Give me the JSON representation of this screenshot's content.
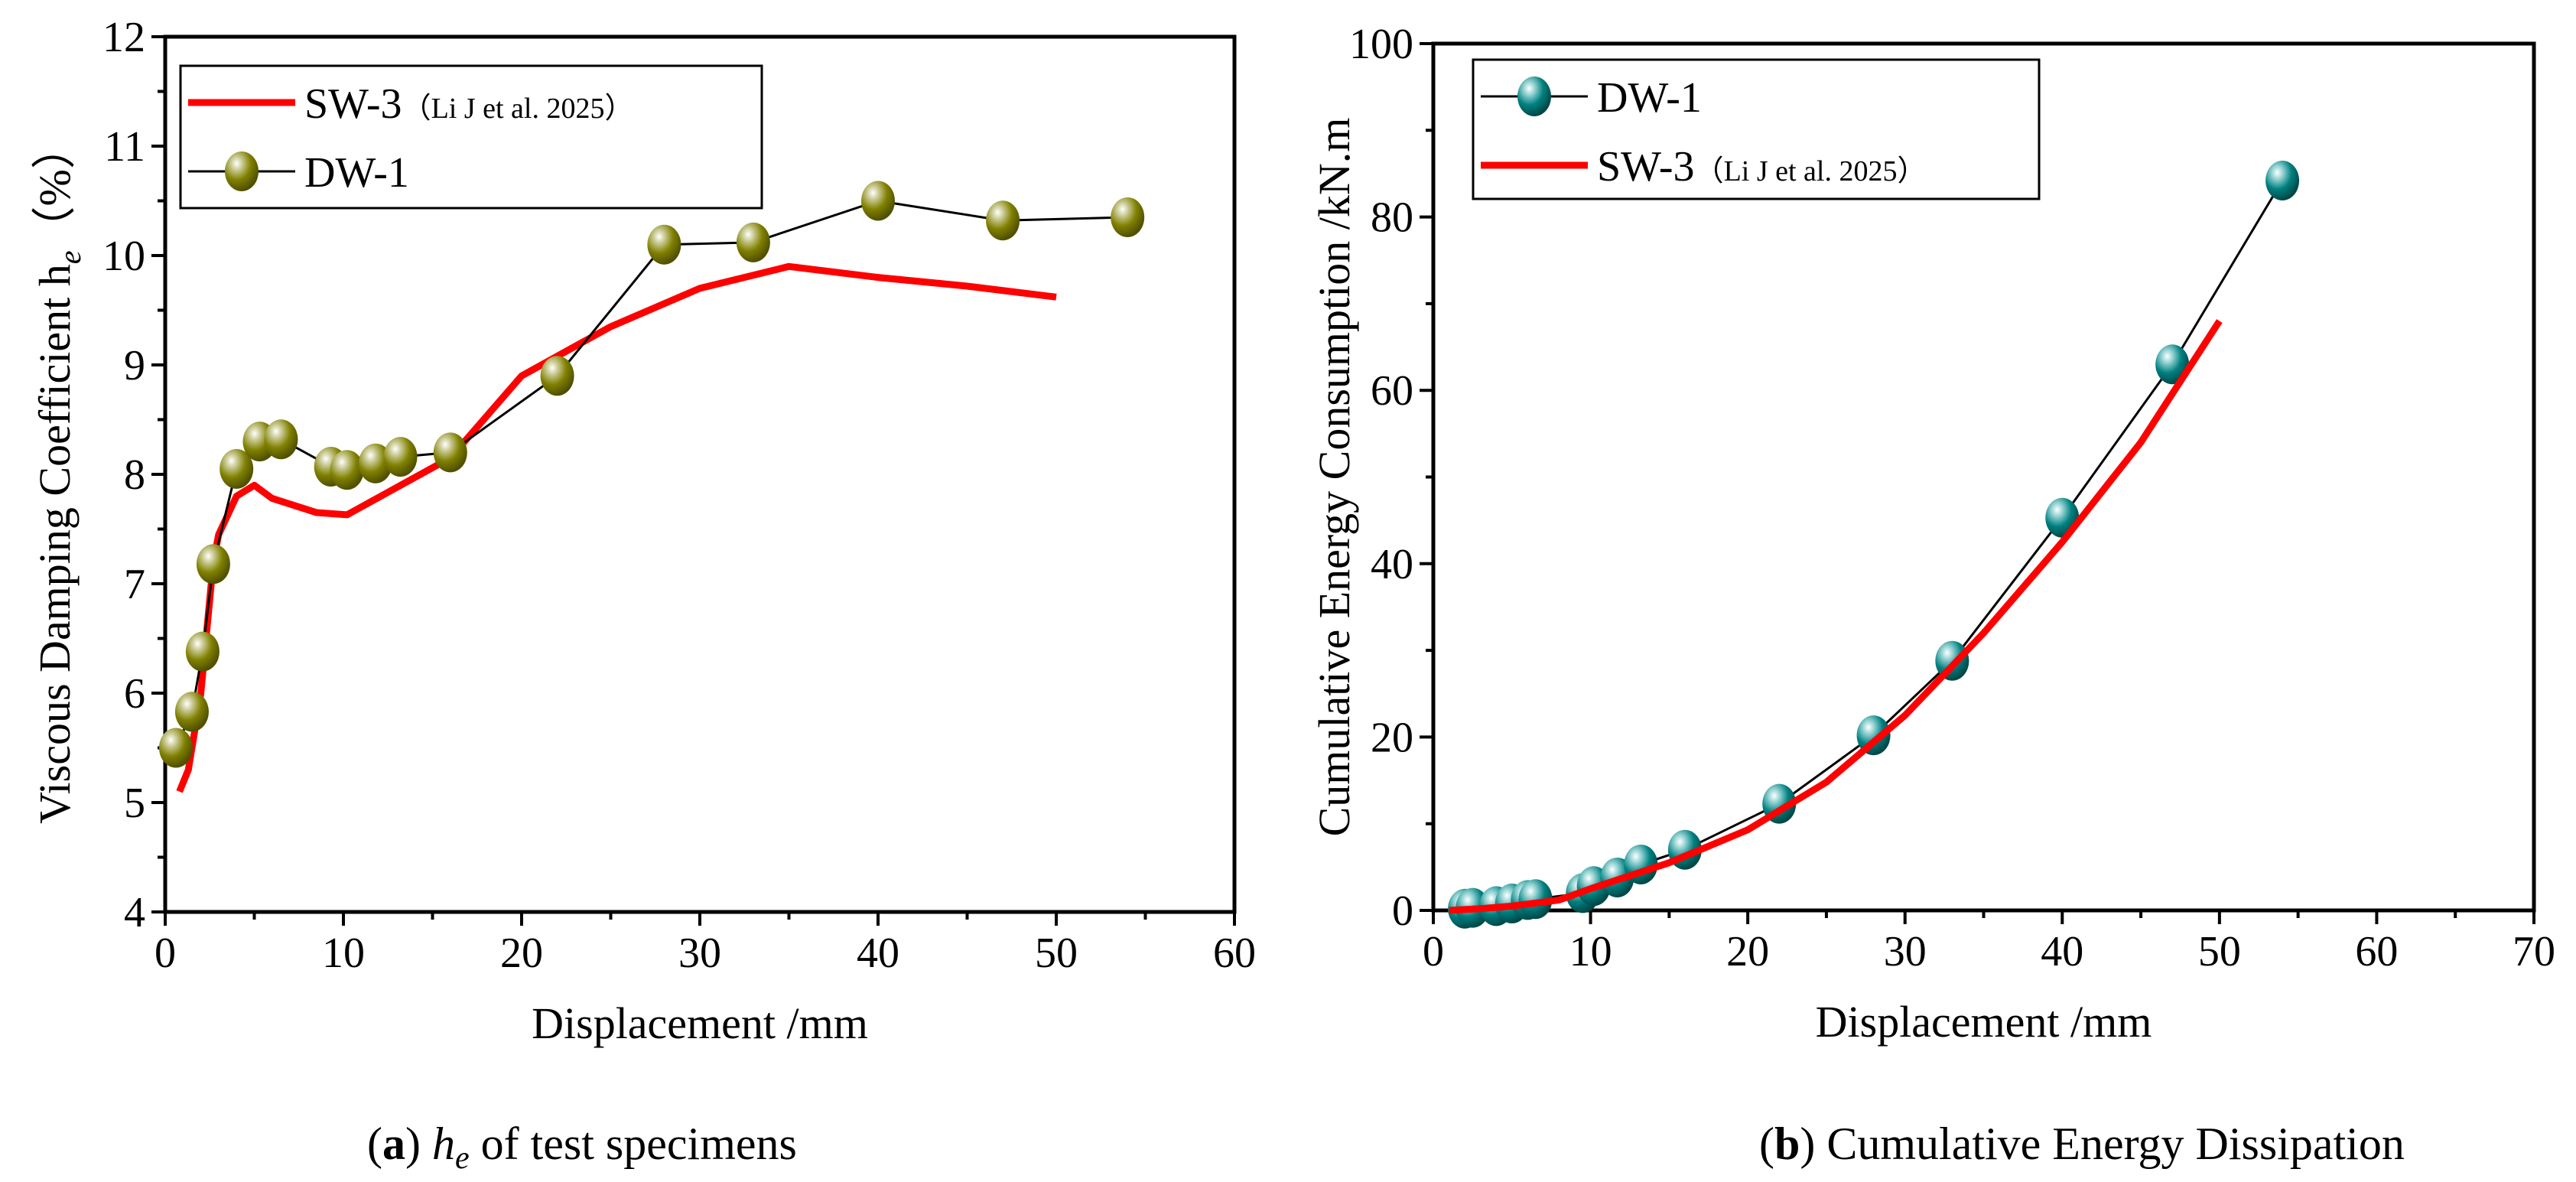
{
  "chart_data": [
    {
      "type": "line",
      "title": "",
      "caption_letter": "a",
      "caption_sym": "h",
      "caption_sub": "e",
      "caption_rest": " of test specimens",
      "xlabel": "Displacement /mm",
      "ylabel": "Viscous Damping Coefficient  h",
      "ylabel_sub": "e",
      "ylabel_unit": "（%）",
      "xlim": [
        0,
        60
      ],
      "ylim": [
        4,
        12
      ],
      "xticks": [
        0,
        10,
        20,
        30,
        40,
        50,
        60
      ],
      "yticks": [
        4,
        5,
        6,
        7,
        8,
        9,
        10,
        11,
        12
      ],
      "legend": "top-left",
      "series": [
        {
          "name": "SW-3",
          "note": "（Li J et al. 2025）",
          "color": "#ff0000",
          "marker": false,
          "x": [
            0.8,
            1.3,
            2,
            2.7,
            3,
            4,
            5,
            6,
            8.5,
            10.2,
            16,
            20,
            25,
            30,
            35,
            40,
            45,
            50
          ],
          "y": [
            5.1,
            5.3,
            6,
            7.2,
            7.45,
            7.8,
            7.9,
            7.78,
            7.65,
            7.63,
            8.15,
            8.9,
            9.35,
            9.7,
            9.9,
            9.8,
            9.72,
            9.62
          ]
        },
        {
          "name": "DW-1",
          "note": "",
          "color": "#808000",
          "marker": true,
          "x": [
            0.6,
            1.5,
            2.1,
            2.7,
            4,
            5.3,
            6.5,
            9.3,
            10.2,
            11.8,
            13.2,
            16,
            22,
            28,
            33,
            40,
            47,
            54
          ],
          "y": [
            5.5,
            5.83,
            6.38,
            7.18,
            8.05,
            8.3,
            8.32,
            8.07,
            8.04,
            8.1,
            8.16,
            8.2,
            8.9,
            10.1,
            10.12,
            10.5,
            10.32,
            10.35
          ]
        }
      ]
    },
    {
      "type": "line",
      "title": "",
      "caption_letter": "b",
      "caption_rest": " Cumulative Energy Dissipation",
      "xlabel": "Displacement /mm",
      "ylabel": "Cumulative Energy Consumption /kN.m",
      "xlim": [
        0,
        70
      ],
      "ylim": [
        0,
        100
      ],
      "xticks": [
        0,
        10,
        20,
        30,
        40,
        50,
        60,
        70
      ],
      "yticks": [
        0,
        20,
        40,
        60,
        80,
        100
      ],
      "legend": "top-left",
      "series": [
        {
          "name": "DW-1",
          "note": "",
          "color": "#008080",
          "marker": true,
          "x": [
            2,
            2.5,
            4,
            5,
            6,
            6.5,
            9.5,
            10.2,
            11.7,
            13.2,
            16,
            22,
            28,
            33,
            40,
            47,
            54
          ],
          "y": [
            0.2,
            0.3,
            0.5,
            0.8,
            1.2,
            1.3,
            2,
            2.8,
            3.8,
            5.3,
            7,
            12.3,
            20.2,
            28.8,
            45.3,
            63,
            84.2
          ]
        },
        {
          "name": "SW-3",
          "note": "（Li J et al. 2025）",
          "color": "#ff0000",
          "marker": false,
          "x": [
            1,
            3,
            5,
            8,
            10,
            15,
            20,
            25,
            30,
            35,
            40,
            45,
            50
          ],
          "y": [
            0,
            0.2,
            0.5,
            1.2,
            2.5,
            5.5,
            9.3,
            14.8,
            22.5,
            32,
            42.5,
            54,
            68
          ]
        }
      ]
    }
  ]
}
